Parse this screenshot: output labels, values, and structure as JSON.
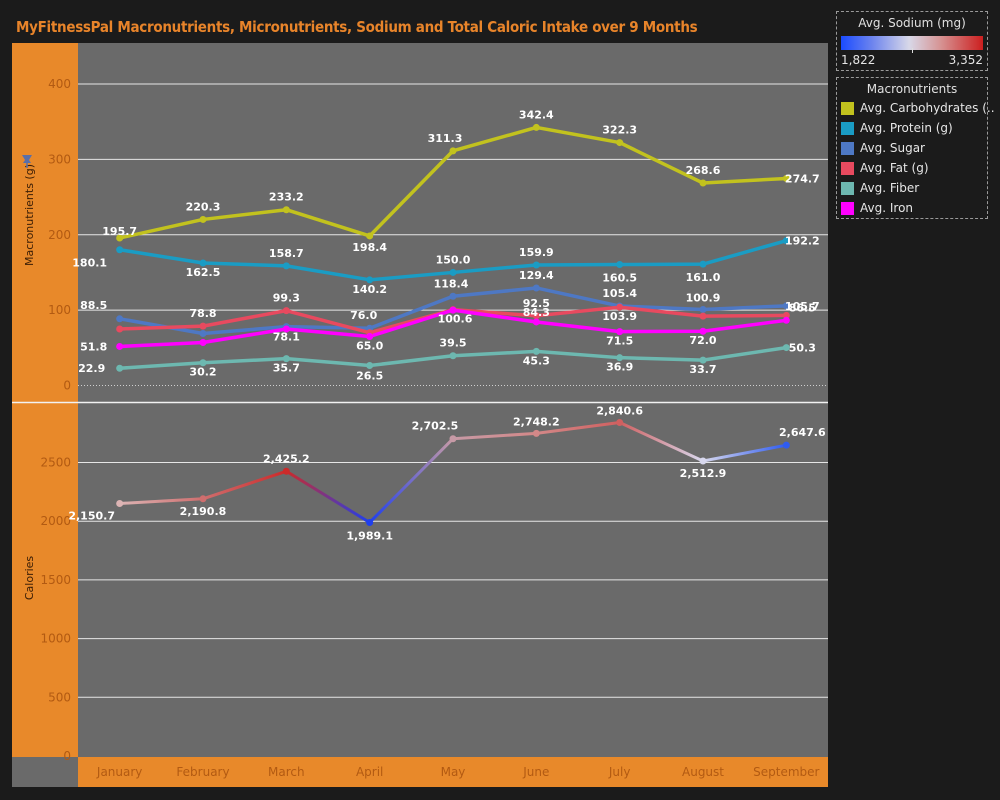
{
  "title": "MyFitnessPal Macronutrients, Micronutrients, Sodium and Total Caloric Intake over 9 Months",
  "sodium_legend": {
    "title": "Avg. Sodium (mg)",
    "min_label": "1,822",
    "max_label": "3,352",
    "colors": [
      "#1a4bff",
      "#d8d8e8",
      "#cc1f1f"
    ]
  },
  "macro_legend": {
    "title": "Macronutrients",
    "items": [
      {
        "label": "Avg. Carbohydrates (..",
        "color": "#c2c21e"
      },
      {
        "label": "Avg. Protein (g)",
        "color": "#1a9cc4"
      },
      {
        "label": "Avg. Sugar",
        "color": "#4e78c4"
      },
      {
        "label": "Avg. Fat (g)",
        "color": "#e84a5f"
      },
      {
        "label": "Avg. Fiber",
        "color": "#6db8b0"
      },
      {
        "label": "Avg. Iron",
        "color": "#ff00ff"
      }
    ]
  },
  "chart_data": [
    {
      "type": "line",
      "ylabel": "Macronutrients (g)",
      "ylim": [
        0,
        450
      ],
      "yticks": [
        "0",
        "100",
        "200",
        "300",
        "400"
      ],
      "ytick_values": [
        0,
        100,
        200,
        300,
        400
      ],
      "categories": [
        "January",
        "February",
        "March",
        "April",
        "May",
        "June",
        "July",
        "August",
        "September"
      ],
      "series": [
        {
          "name": "Avg. Carbohydrates (..",
          "color": "#c2c21e",
          "values": [
            195.7,
            220.3,
            233.2,
            198.4,
            311.3,
            342.4,
            322.3,
            268.6,
            274.7
          ],
          "labels": [
            "195.7",
            "220.3",
            "233.2",
            "198.4",
            "311.3",
            "342.4",
            "322.3",
            "268.6",
            "274.7"
          ]
        },
        {
          "name": "Avg. Protein (g)",
          "color": "#1a9cc4",
          "values": [
            180.1,
            162.5,
            158.7,
            140.2,
            150.0,
            159.9,
            160.5,
            161.0,
            192.2
          ],
          "labels": [
            "180.1",
            "162.5",
            "158.7",
            "140.2",
            "150.0",
            "159.9",
            "160.5",
            "161.0",
            "192.2"
          ]
        },
        {
          "name": "Avg. Sugar",
          "color": "#4e78c4",
          "values": [
            88.5,
            69.0,
            78.1,
            76.0,
            118.4,
            129.4,
            105.4,
            100.9,
            105.7
          ],
          "labels": [
            "88.5",
            "",
            "78.1",
            "76.0",
            "118.4",
            "129.4",
            "105.4",
            "100.9",
            "105.7"
          ]
        },
        {
          "name": "Avg. Fat (g)",
          "color": "#e84a5f",
          "values": [
            75.0,
            78.8,
            99.3,
            70.0,
            100.6,
            92.5,
            103.9,
            92.0,
            93.0
          ],
          "labels": [
            "",
            "78.8",
            "99.3",
            "",
            "100.6",
            "92.5",
            "103.9",
            "",
            ""
          ]
        },
        {
          "name": "Avg. Fiber",
          "color": "#6db8b0",
          "values": [
            22.9,
            30.2,
            35.7,
            26.5,
            39.5,
            45.3,
            36.9,
            33.7,
            50.3
          ],
          "labels": [
            "22.9",
            "30.2",
            "35.7",
            "26.5",
            "39.5",
            "45.3",
            "36.9",
            "33.7",
            "50.3"
          ]
        },
        {
          "name": "Avg. Iron",
          "color": "#ff00ff",
          "values": [
            51.8,
            57.0,
            75.0,
            65.0,
            100.0,
            84.3,
            71.5,
            72.0,
            86.5
          ],
          "labels": [
            "51.8",
            "",
            "",
            "65.0",
            "",
            "84.3",
            "71.5",
            "72.0",
            "86.5"
          ]
        }
      ]
    },
    {
      "type": "line",
      "ylabel": "Calories",
      "ylim": [
        0,
        3000
      ],
      "yticks": [
        "0",
        "500",
        "1000",
        "1500",
        "2000",
        "2500"
      ],
      "ytick_values": [
        0,
        500,
        1000,
        1500,
        2000,
        2500
      ],
      "categories": [
        "January",
        "February",
        "March",
        "April",
        "May",
        "June",
        "July",
        "August",
        "September"
      ],
      "series": [
        {
          "name": "Calories",
          "values": [
            2150.7,
            2190.8,
            2425.2,
            1989.1,
            2702.5,
            2748.2,
            2840.6,
            2512.9,
            2647.6
          ],
          "labels": [
            "2,150.7",
            "2,190.8",
            "2,425.2",
            "1,989.1",
            "2,702.5",
            "2,748.2",
            "2,840.6",
            "2,512.9",
            "2,647.6"
          ],
          "colors": [
            "#dcb4b4",
            "#cf6e6e",
            "#cc2a2a",
            "#1f3fee",
            "#c79aa6",
            "#d38888",
            "#d06060",
            "#d8d8ee",
            "#2f5cf0"
          ]
        }
      ]
    }
  ]
}
